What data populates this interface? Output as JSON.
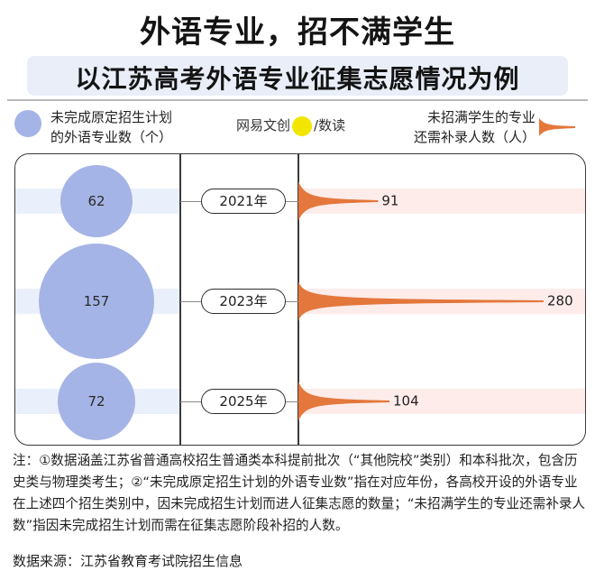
{
  "title": "外语专业，招不满学生",
  "subtitle": "以江苏高考外语专业征集志愿情况为例",
  "legend": {
    "left_line1": "未完成原定招生计划",
    "left_line2": "的外语专业数（个）",
    "right_line1": "未招满学生的专业",
    "right_line2": "还需补录人数（人）",
    "circle_color": "#a5b4e6",
    "ribbon_color": "#e4773c"
  },
  "brand": {
    "part1": "网易",
    "part2": "文创",
    "badge": "NetEase",
    "part3": "/数读"
  },
  "chart_data": {
    "type": "bubble-and-area",
    "categories": [
      "2021年",
      "2023年",
      "2025年"
    ],
    "series": [
      {
        "name": "未完成原定招生计划的外语专业数（个）",
        "values": [
          62,
          157,
          72
        ]
      },
      {
        "name": "未招满学生的专业还需补录人数（人）",
        "values": [
          91,
          280,
          104
        ]
      }
    ],
    "value_labels_left": [
      "62",
      "157",
      "72"
    ],
    "value_labels_right": [
      "91",
      "280",
      "104"
    ]
  },
  "note": "注：①数据涵盖江苏省普通高校招生普通类本科提前批次（“其他院校”类别）和本科批次，包含历史类与物理类考生；②“未完成原定招生计划的外语专业数”指在对应年份，各高校开设的外语专业在上述四个招生类别中，因未完成招生计划而进人征集志愿的数量；“未招满学生的专业还需补录人数”指因未完成招生计划而需在征集志愿阶段补招的人数。",
  "source": "数据来源：江苏省教育考试院招生信息"
}
